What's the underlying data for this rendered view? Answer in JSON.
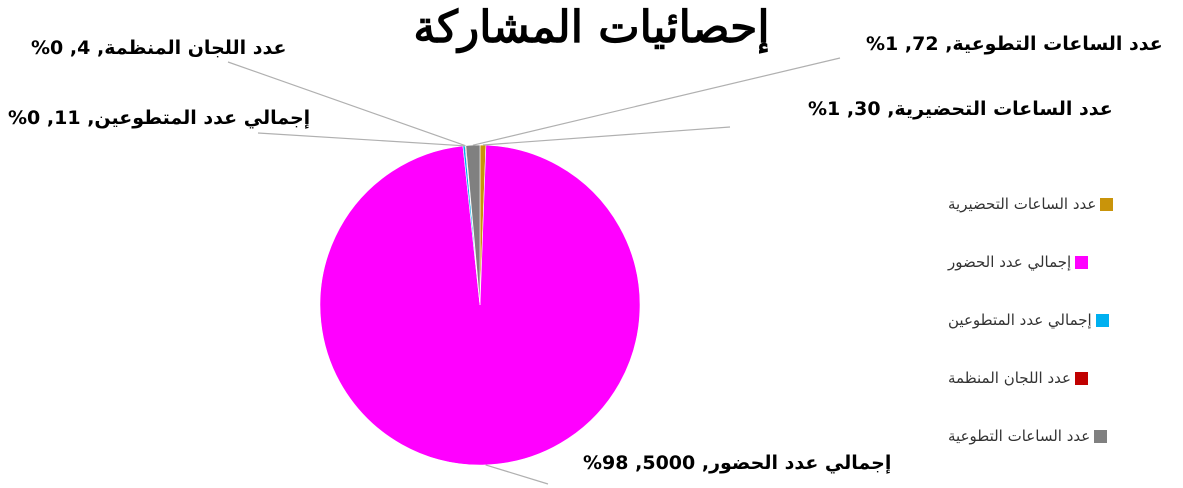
{
  "chart_data": {
    "type": "pie",
    "title": "إحصائيات المشاركة",
    "categories": [
      "عدد الساعات التحضيرية",
      "إجمالي عدد الحضور",
      "إجمالي عدد المتطوعين",
      "عدد اللجان المنظمة",
      "عدد الساعات التطوعية"
    ],
    "values": [
      30,
      5000,
      11,
      4,
      72
    ],
    "percent_labels": [
      "1%",
      "98%",
      "0%",
      "0%",
      "1%"
    ],
    "colors": [
      "#C9940A",
      "#FF00FF",
      "#00B0F0",
      "#C00000",
      "#808080"
    ],
    "data_labels": [
      "عدد الساعات التحضيرية, 30, 1%",
      "إجمالي عدد الحضور, 5000, 98%",
      "إجمالي عدد المتطوعين, 11, 0%",
      "عدد اللجان المنظمة, 4, 0%",
      "عدد الساعات التطوعية, 72, 1%"
    ],
    "legend_position": "right"
  }
}
